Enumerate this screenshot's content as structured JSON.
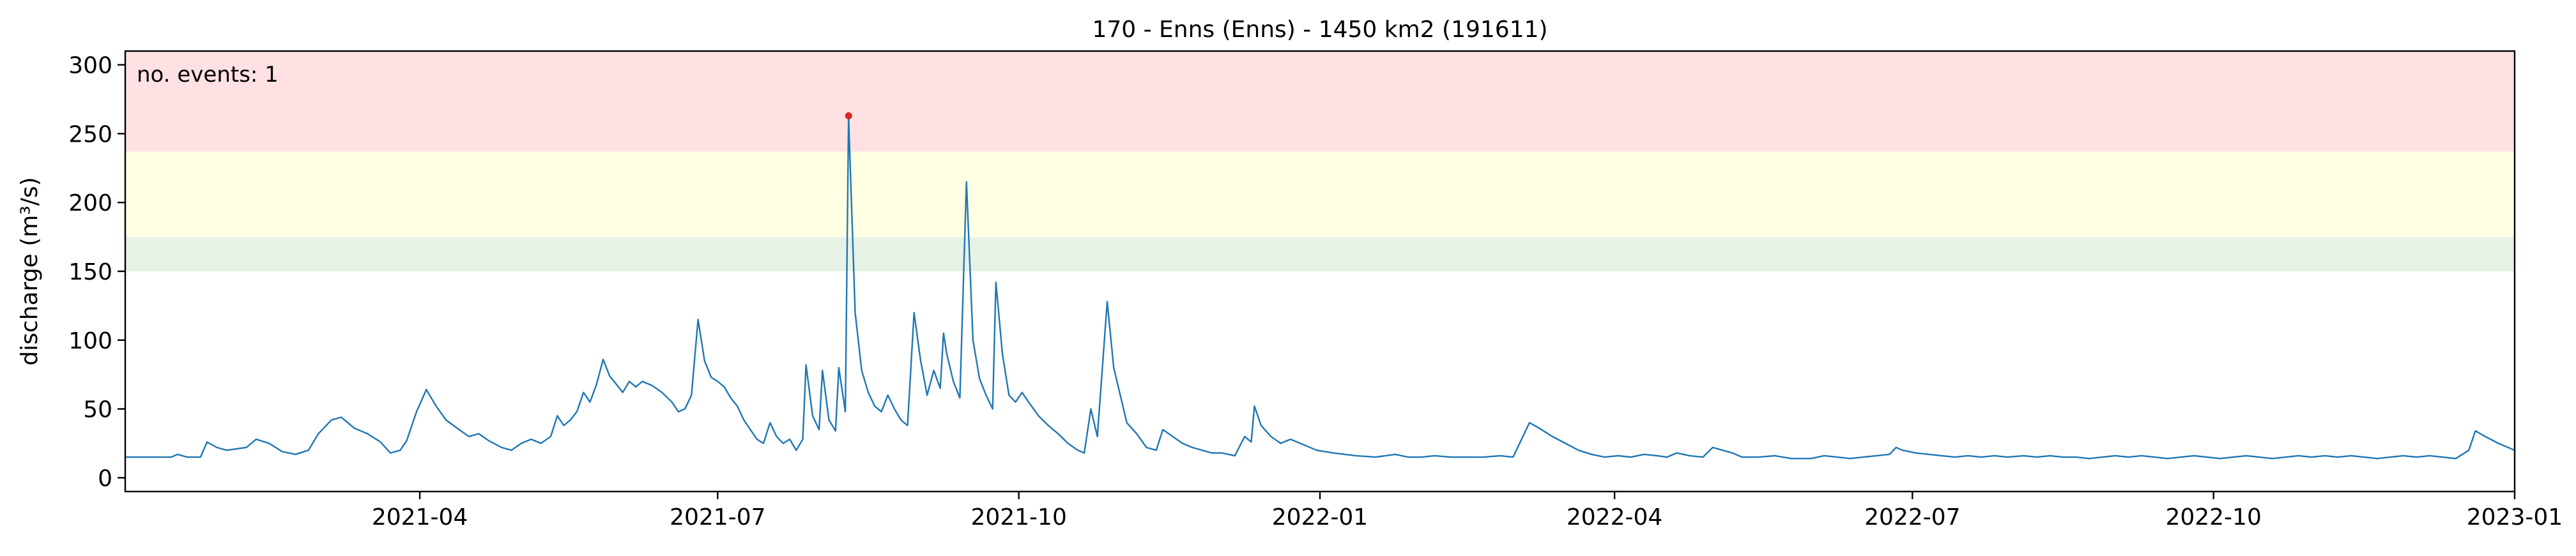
{
  "chart_data": {
    "type": "line",
    "title": "170 - Enns (Enns) - 1450 km2 (191611)",
    "ylabel": "discharge (m³/s)",
    "xlabel": "",
    "x_range": [
      "2021-01-01",
      "2023-01-01"
    ],
    "ylim": [
      -10,
      310
    ],
    "y_ticks": [
      0,
      50,
      100,
      150,
      200,
      250,
      300
    ],
    "x_ticks": [
      {
        "date": "2021-04-01",
        "label": "2021-04"
      },
      {
        "date": "2021-07-01",
        "label": "2021-07"
      },
      {
        "date": "2021-10-01",
        "label": "2021-10"
      },
      {
        "date": "2022-01-01",
        "label": "2022-01"
      },
      {
        "date": "2022-04-01",
        "label": "2022-04"
      },
      {
        "date": "2022-07-01",
        "label": "2022-07"
      },
      {
        "date": "2022-10-01",
        "label": "2022-10"
      },
      {
        "date": "2023-01-01",
        "label": "2023-01"
      }
    ],
    "grid": false,
    "bands": [
      {
        "from": 150,
        "to": 175,
        "color": "#e6f2e6"
      },
      {
        "from": 175,
        "to": 237,
        "color": "#ffffe3"
      },
      {
        "from": 237,
        "to": 310,
        "color": "#ffe1e4"
      }
    ],
    "annotation": {
      "text": "no. events: 1",
      "color": "#dd0000"
    },
    "series": [
      {
        "color": "#1f77b4",
        "points": [
          [
            "2021-01-01",
            15
          ],
          [
            "2021-01-10",
            15
          ],
          [
            "2021-01-15",
            15
          ],
          [
            "2021-01-17",
            17
          ],
          [
            "2021-01-20",
            15
          ],
          [
            "2021-01-24",
            15
          ],
          [
            "2021-01-26",
            26
          ],
          [
            "2021-01-29",
            22
          ],
          [
            "2021-02-01",
            20
          ],
          [
            "2021-02-07",
            22
          ],
          [
            "2021-02-10",
            28
          ],
          [
            "2021-02-14",
            25
          ],
          [
            "2021-02-18",
            19
          ],
          [
            "2021-02-22",
            17
          ],
          [
            "2021-02-26",
            20
          ],
          [
            "2021-03-01",
            32
          ],
          [
            "2021-03-05",
            42
          ],
          [
            "2021-03-08",
            44
          ],
          [
            "2021-03-12",
            36
          ],
          [
            "2021-03-16",
            32
          ],
          [
            "2021-03-20",
            26
          ],
          [
            "2021-03-23",
            18
          ],
          [
            "2021-03-26",
            20
          ],
          [
            "2021-03-28",
            27
          ],
          [
            "2021-03-31",
            48
          ],
          [
            "2021-04-03",
            64
          ],
          [
            "2021-04-06",
            52
          ],
          [
            "2021-04-09",
            42
          ],
          [
            "2021-04-13",
            35
          ],
          [
            "2021-04-16",
            30
          ],
          [
            "2021-04-19",
            32
          ],
          [
            "2021-04-22",
            27
          ],
          [
            "2021-04-26",
            22
          ],
          [
            "2021-04-29",
            20
          ],
          [
            "2021-05-02",
            25
          ],
          [
            "2021-05-05",
            28
          ],
          [
            "2021-05-08",
            25
          ],
          [
            "2021-05-11",
            30
          ],
          [
            "2021-05-13",
            45
          ],
          [
            "2021-05-15",
            38
          ],
          [
            "2021-05-17",
            42
          ],
          [
            "2021-05-19",
            48
          ],
          [
            "2021-05-21",
            62
          ],
          [
            "2021-05-23",
            55
          ],
          [
            "2021-05-25",
            68
          ],
          [
            "2021-05-27",
            86
          ],
          [
            "2021-05-29",
            74
          ],
          [
            "2021-05-31",
            68
          ],
          [
            "2021-06-02",
            62
          ],
          [
            "2021-06-04",
            70
          ],
          [
            "2021-06-06",
            66
          ],
          [
            "2021-06-08",
            70
          ],
          [
            "2021-06-11",
            67
          ],
          [
            "2021-06-14",
            62
          ],
          [
            "2021-06-17",
            55
          ],
          [
            "2021-06-19",
            48
          ],
          [
            "2021-06-21",
            50
          ],
          [
            "2021-06-23",
            60
          ],
          [
            "2021-06-25",
            115
          ],
          [
            "2021-06-27",
            85
          ],
          [
            "2021-06-29",
            73
          ],
          [
            "2021-07-01",
            70
          ],
          [
            "2021-07-03",
            66
          ],
          [
            "2021-07-05",
            58
          ],
          [
            "2021-07-07",
            52
          ],
          [
            "2021-07-09",
            42
          ],
          [
            "2021-07-11",
            35
          ],
          [
            "2021-07-13",
            28
          ],
          [
            "2021-07-15",
            25
          ],
          [
            "2021-07-17",
            40
          ],
          [
            "2021-07-19",
            30
          ],
          [
            "2021-07-21",
            25
          ],
          [
            "2021-07-23",
            28
          ],
          [
            "2021-07-25",
            20
          ],
          [
            "2021-07-27",
            28
          ],
          [
            "2021-07-28",
            82
          ],
          [
            "2021-07-30",
            45
          ],
          [
            "2021-08-01",
            35
          ],
          [
            "2021-08-02",
            78
          ],
          [
            "2021-08-04",
            42
          ],
          [
            "2021-08-06",
            34
          ],
          [
            "2021-08-07",
            80
          ],
          [
            "2021-08-09",
            48
          ],
          [
            "2021-08-10",
            262
          ],
          [
            "2021-08-12",
            120
          ],
          [
            "2021-08-14",
            78
          ],
          [
            "2021-08-16",
            62
          ],
          [
            "2021-08-18",
            52
          ],
          [
            "2021-08-20",
            48
          ],
          [
            "2021-08-22",
            60
          ],
          [
            "2021-08-24",
            50
          ],
          [
            "2021-08-26",
            42
          ],
          [
            "2021-08-28",
            38
          ],
          [
            "2021-08-30",
            120
          ],
          [
            "2021-09-01",
            85
          ],
          [
            "2021-09-03",
            60
          ],
          [
            "2021-09-05",
            78
          ],
          [
            "2021-09-07",
            65
          ],
          [
            "2021-09-08",
            105
          ],
          [
            "2021-09-09",
            90
          ],
          [
            "2021-09-11",
            70
          ],
          [
            "2021-09-13",
            58
          ],
          [
            "2021-09-15",
            215
          ],
          [
            "2021-09-17",
            100
          ],
          [
            "2021-09-19",
            72
          ],
          [
            "2021-09-21",
            60
          ],
          [
            "2021-09-23",
            50
          ],
          [
            "2021-09-24",
            142
          ],
          [
            "2021-09-26",
            90
          ],
          [
            "2021-09-28",
            60
          ],
          [
            "2021-09-30",
            55
          ],
          [
            "2021-10-02",
            62
          ],
          [
            "2021-10-04",
            55
          ],
          [
            "2021-10-07",
            45
          ],
          [
            "2021-10-10",
            38
          ],
          [
            "2021-10-13",
            32
          ],
          [
            "2021-10-16",
            25
          ],
          [
            "2021-10-19",
            20
          ],
          [
            "2021-10-21",
            18
          ],
          [
            "2021-10-23",
            50
          ],
          [
            "2021-10-25",
            30
          ],
          [
            "2021-10-28",
            128
          ],
          [
            "2021-10-30",
            80
          ],
          [
            "2021-11-01",
            60
          ],
          [
            "2021-11-03",
            40
          ],
          [
            "2021-11-06",
            32
          ],
          [
            "2021-11-09",
            22
          ],
          [
            "2021-11-12",
            20
          ],
          [
            "2021-11-14",
            35
          ],
          [
            "2021-11-17",
            30
          ],
          [
            "2021-11-20",
            25
          ],
          [
            "2021-11-23",
            22
          ],
          [
            "2021-11-26",
            20
          ],
          [
            "2021-11-29",
            18
          ],
          [
            "2021-12-02",
            18
          ],
          [
            "2021-12-06",
            16
          ],
          [
            "2021-12-09",
            30
          ],
          [
            "2021-12-11",
            26
          ],
          [
            "2021-12-12",
            52
          ],
          [
            "2021-12-14",
            38
          ],
          [
            "2021-12-17",
            30
          ],
          [
            "2021-12-20",
            25
          ],
          [
            "2021-12-23",
            28
          ],
          [
            "2021-12-27",
            24
          ],
          [
            "2021-12-31",
            20
          ],
          [
            "2022-01-05",
            18
          ],
          [
            "2022-01-12",
            16
          ],
          [
            "2022-01-18",
            15
          ],
          [
            "2022-01-24",
            17
          ],
          [
            "2022-01-28",
            15
          ],
          [
            "2022-02-01",
            15
          ],
          [
            "2022-02-05",
            16
          ],
          [
            "2022-02-10",
            15
          ],
          [
            "2022-02-15",
            15
          ],
          [
            "2022-02-20",
            15
          ],
          [
            "2022-02-25",
            16
          ],
          [
            "2022-03-01",
            15
          ],
          [
            "2022-03-06",
            40
          ],
          [
            "2022-03-09",
            36
          ],
          [
            "2022-03-13",
            30
          ],
          [
            "2022-03-17",
            25
          ],
          [
            "2022-03-21",
            20
          ],
          [
            "2022-03-25",
            17
          ],
          [
            "2022-03-29",
            15
          ],
          [
            "2022-04-02",
            16
          ],
          [
            "2022-04-06",
            15
          ],
          [
            "2022-04-10",
            17
          ],
          [
            "2022-04-14",
            16
          ],
          [
            "2022-04-17",
            15
          ],
          [
            "2022-04-20",
            18
          ],
          [
            "2022-04-24",
            16
          ],
          [
            "2022-04-28",
            15
          ],
          [
            "2022-05-01",
            22
          ],
          [
            "2022-05-04",
            20
          ],
          [
            "2022-05-07",
            18
          ],
          [
            "2022-05-10",
            15
          ],
          [
            "2022-05-15",
            15
          ],
          [
            "2022-05-20",
            16
          ],
          [
            "2022-05-25",
            14
          ],
          [
            "2022-05-31",
            14
          ],
          [
            "2022-06-04",
            16
          ],
          [
            "2022-06-08",
            15
          ],
          [
            "2022-06-12",
            14
          ],
          [
            "2022-06-16",
            15
          ],
          [
            "2022-06-20",
            16
          ],
          [
            "2022-06-24",
            17
          ],
          [
            "2022-06-26",
            22
          ],
          [
            "2022-06-28",
            20
          ],
          [
            "2022-07-02",
            18
          ],
          [
            "2022-07-06",
            17
          ],
          [
            "2022-07-10",
            16
          ],
          [
            "2022-07-14",
            15
          ],
          [
            "2022-07-18",
            16
          ],
          [
            "2022-07-22",
            15
          ],
          [
            "2022-07-26",
            16
          ],
          [
            "2022-07-30",
            15
          ],
          [
            "2022-08-04",
            16
          ],
          [
            "2022-08-08",
            15
          ],
          [
            "2022-08-12",
            16
          ],
          [
            "2022-08-16",
            15
          ],
          [
            "2022-08-20",
            15
          ],
          [
            "2022-08-24",
            14
          ],
          [
            "2022-08-28",
            15
          ],
          [
            "2022-09-01",
            16
          ],
          [
            "2022-09-05",
            15
          ],
          [
            "2022-09-09",
            16
          ],
          [
            "2022-09-13",
            15
          ],
          [
            "2022-09-17",
            14
          ],
          [
            "2022-09-21",
            15
          ],
          [
            "2022-09-25",
            16
          ],
          [
            "2022-09-29",
            15
          ],
          [
            "2022-10-03",
            14
          ],
          [
            "2022-10-07",
            15
          ],
          [
            "2022-10-11",
            16
          ],
          [
            "2022-10-15",
            15
          ],
          [
            "2022-10-19",
            14
          ],
          [
            "2022-10-23",
            15
          ],
          [
            "2022-10-27",
            16
          ],
          [
            "2022-10-31",
            15
          ],
          [
            "2022-11-04",
            16
          ],
          [
            "2022-11-08",
            15
          ],
          [
            "2022-11-12",
            16
          ],
          [
            "2022-11-16",
            15
          ],
          [
            "2022-11-20",
            14
          ],
          [
            "2022-11-24",
            15
          ],
          [
            "2022-11-28",
            16
          ],
          [
            "2022-12-02",
            15
          ],
          [
            "2022-12-06",
            16
          ],
          [
            "2022-12-10",
            15
          ],
          [
            "2022-12-14",
            14
          ],
          [
            "2022-12-18",
            20
          ],
          [
            "2022-12-20",
            34
          ],
          [
            "2022-12-23",
            30
          ],
          [
            "2022-12-27",
            25
          ],
          [
            "2023-01-01",
            20
          ]
        ]
      }
    ],
    "event_points": [
      [
        "2021-08-10",
        263
      ]
    ]
  }
}
